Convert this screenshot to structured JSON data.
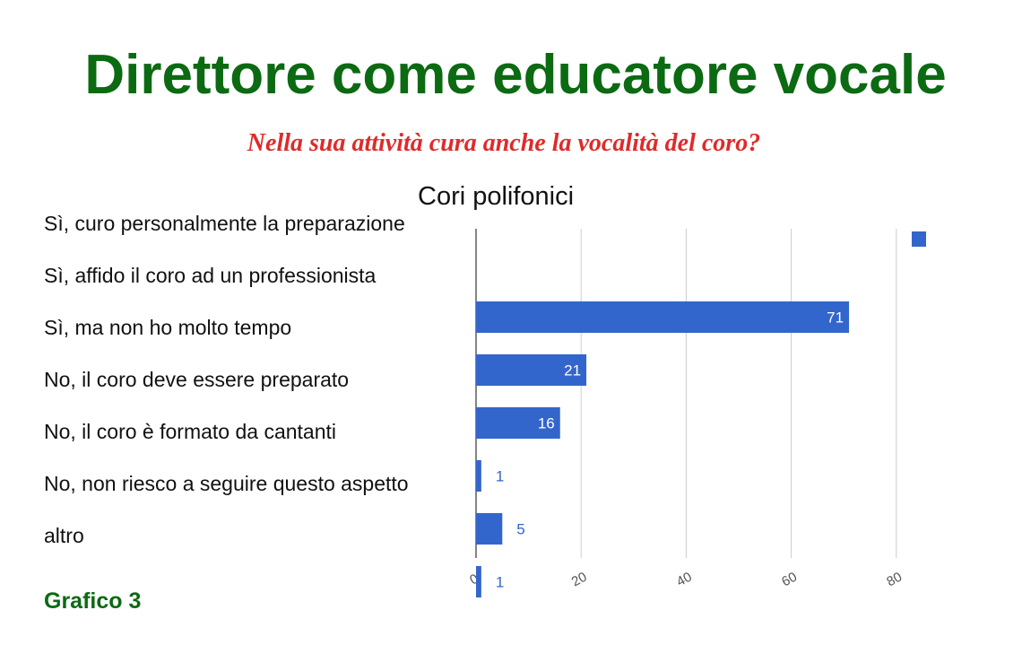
{
  "page": {
    "title": "Direttore come educatore vocale",
    "subtitle": "Nella sua attività cura anche la vocalità del coro?",
    "footer": "Grafico 3"
  },
  "colors": {
    "title": "#0b6a12",
    "subtitle": "#e02a2a",
    "bar": "#3366cc",
    "grid": "#cccccc"
  },
  "chart_data": {
    "type": "bar",
    "orientation": "horizontal",
    "title": "Cori polifonici",
    "categories": [
      "Sì, curo personalmente la preparazione",
      "Sì, affido il coro ad un professionista",
      "Sì, ma non ho molto tempo",
      "No, il coro deve essere preparato",
      "No, il coro è formato da cantanti",
      "No, non riesco a seguire questo aspetto",
      "altro"
    ],
    "values": [
      null,
      71,
      21,
      16,
      1,
      5,
      1
    ],
    "data_labels": [
      "",
      "71",
      "21",
      "16",
      "1",
      "5",
      "1"
    ],
    "xlim": [
      0,
      90
    ],
    "xticks": [
      0,
      20,
      40,
      60,
      80
    ],
    "xtick_labels": [
      "0",
      "20",
      "40",
      "60",
      "80"
    ],
    "grid": true,
    "legend": "top-right"
  }
}
